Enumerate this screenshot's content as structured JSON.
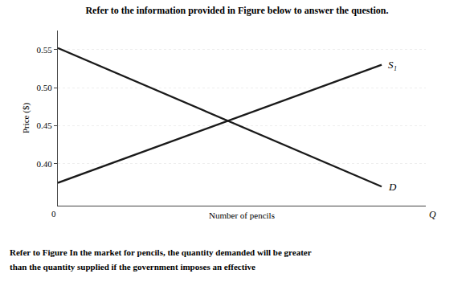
{
  "chart_data": {
    "type": "line",
    "title": "Refer to the information provided in Figure below to answer the question.",
    "annotations": [
      "Refer to Figure In the market for pencils, the quantity demanded will be greater",
      "than the quantity supplied if the government imposes an effective",
      "0",
      "Q"
    ],
    "x_label": "Number of pencils",
    "y_label": "Price ($)",
    "x": [
      0.0,
      0.88
    ],
    "series": [
      {
        "name": "S₁",
        "color": "#1a1a1a",
        "values": [
          0.375,
          0.53
        ]
      },
      {
        "name": "D",
        "color": "#1a1a1a",
        "values": [
          0.552,
          0.37
        ]
      }
    ],
    "xlim": [
      0,
      1.0
    ],
    "xticks": [],
    "ylim": [
      0.345,
      0.575
    ],
    "yticks": [
      {
        "value": 0.4,
        "label": "0.40"
      },
      {
        "value": 0.45,
        "label": "0.45"
      },
      {
        "value": 0.5,
        "label": "0.50"
      },
      {
        "value": 0.55,
        "label": "0.55"
      }
    ],
    "grid": true,
    "tick_labels": "y"
  }
}
